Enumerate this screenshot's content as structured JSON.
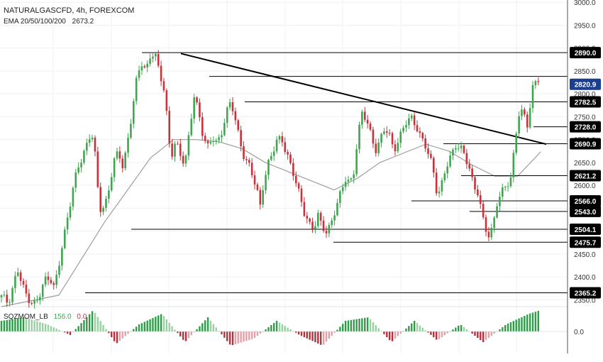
{
  "header": {
    "title": "NATURALGASCFD, 4h, FOREXCOM",
    "ema_label": "EMA 20/50/100/200",
    "ema_value": "2673.2"
  },
  "oscillator": {
    "label": "SQZMOM_LB",
    "value": "156.0",
    "value2": "0.0",
    "axis_label": "0.0"
  },
  "colors": {
    "bull": "#3fa64f",
    "bear": "#c8323a",
    "ema": "#9e9e9e",
    "trendline": "#000000",
    "hline": "#000000",
    "current_price_bg": "#1b3f8f",
    "level_bg": "#000000",
    "osc_pos_strong": "#2e9c48",
    "osc_pos_weak": "#98d1a0",
    "osc_neg_strong": "#b3303d",
    "osc_neg_weak": "#e2a1a8"
  },
  "chart_data": {
    "type": "candlestick",
    "symbol": "NATURALGASCFD",
    "timeframe": "4h",
    "y_ticks": [
      "3000.0",
      "2950.0",
      "2900.0",
      "2850.0",
      "2800.0",
      "2750.0",
      "2700.0",
      "2650.0",
      "2600.0",
      "2550.0",
      "2500.0",
      "2450.0",
      "2400.0",
      "2350.0"
    ],
    "ylim": [
      2335,
      3005
    ],
    "current_price": "2820.9",
    "price_levels": [
      {
        "value": 2890.0,
        "label": "2890.0"
      },
      {
        "value": 2782.5,
        "label": "2782.5"
      },
      {
        "value": 2728.0,
        "label": "2728.0"
      },
      {
        "value": 2690.9,
        "label": "2690.9"
      },
      {
        "value": 2621.2,
        "label": "2621.2"
      },
      {
        "value": 2566.0,
        "label": "2566.0"
      },
      {
        "value": 2543.0,
        "label": "2543.0"
      },
      {
        "value": 2504.1,
        "label": "2504.1"
      },
      {
        "value": 2475.7,
        "label": "2475.7"
      },
      {
        "value": 2365.2,
        "label": "2365.2"
      }
    ],
    "trendline": {
      "from": 2888,
      "to": 2690
    },
    "ema_value": 2673.2,
    "path": [
      [
        0,
        2355
      ],
      [
        6,
        2345
      ],
      [
        10,
        2380
      ],
      [
        14,
        2415
      ],
      [
        18,
        2380
      ],
      [
        22,
        2360
      ],
      [
        26,
        2348
      ],
      [
        30,
        2340
      ],
      [
        34,
        2360
      ],
      [
        38,
        2395
      ],
      [
        42,
        2405
      ],
      [
        46,
        2375
      ],
      [
        50,
        2420
      ],
      [
        54,
        2480
      ],
      [
        58,
        2540
      ],
      [
        62,
        2590
      ],
      [
        66,
        2630
      ],
      [
        70,
        2655
      ],
      [
        74,
        2690
      ],
      [
        78,
        2720
      ],
      [
        80,
        2700
      ],
      [
        82,
        2655
      ],
      [
        84,
        2590
      ],
      [
        86,
        2545
      ],
      [
        90,
        2555
      ],
      [
        94,
        2600
      ],
      [
        98,
        2650
      ],
      [
        102,
        2670
      ],
      [
        106,
        2640
      ],
      [
        110,
        2700
      ],
      [
        114,
        2760
      ],
      [
        118,
        2830
      ],
      [
        122,
        2870
      ],
      [
        126,
        2855
      ],
      [
        130,
        2885
      ],
      [
        134,
        2880
      ],
      [
        138,
        2845
      ],
      [
        140,
        2830
      ],
      [
        142,
        2810
      ],
      [
        144,
        2760
      ],
      [
        146,
        2700
      ],
      [
        148,
        2660
      ],
      [
        152,
        2690
      ],
      [
        156,
        2670
      ],
      [
        160,
        2650
      ],
      [
        164,
        2720
      ],
      [
        168,
        2790
      ],
      [
        172,
        2760
      ],
      [
        176,
        2710
      ],
      [
        180,
        2685
      ],
      [
        184,
        2700
      ],
      [
        188,
        2690
      ],
      [
        192,
        2720
      ],
      [
        196,
        2760
      ],
      [
        200,
        2780
      ],
      [
        204,
        2740
      ],
      [
        208,
        2700
      ],
      [
        212,
        2660
      ],
      [
        216,
        2640
      ],
      [
        220,
        2610
      ],
      [
        224,
        2580
      ],
      [
        226,
        2555
      ],
      [
        228,
        2600
      ],
      [
        232,
        2640
      ],
      [
        236,
        2665
      ],
      [
        240,
        2700
      ],
      [
        244,
        2710
      ],
      [
        248,
        2670
      ],
      [
        252,
        2640
      ],
      [
        256,
        2615
      ],
      [
        260,
        2585
      ],
      [
        264,
        2540
      ],
      [
        268,
        2510
      ],
      [
        272,
        2505
      ],
      [
        276,
        2540
      ],
      [
        280,
        2510
      ],
      [
        284,
        2490
      ],
      [
        288,
        2520
      ],
      [
        292,
        2560
      ],
      [
        296,
        2590
      ],
      [
        300,
        2610
      ],
      [
        304,
        2600
      ],
      [
        308,
        2640
      ],
      [
        310,
        2700
      ],
      [
        314,
        2760
      ],
      [
        318,
        2740
      ],
      [
        322,
        2710
      ],
      [
        326,
        2680
      ],
      [
        330,
        2700
      ],
      [
        334,
        2720
      ],
      [
        338,
        2710
      ],
      [
        342,
        2680
      ],
      [
        346,
        2700
      ],
      [
        350,
        2720
      ],
      [
        354,
        2740
      ],
      [
        358,
        2750
      ],
      [
        362,
        2730
      ],
      [
        366,
        2700
      ],
      [
        370,
        2680
      ],
      [
        374,
        2660
      ],
      [
        378,
        2620
      ],
      [
        380,
        2575
      ],
      [
        384,
        2600
      ],
      [
        388,
        2640
      ],
      [
        392,
        2670
      ],
      [
        396,
        2690
      ],
      [
        400,
        2680
      ],
      [
        404,
        2660
      ],
      [
        408,
        2640
      ],
      [
        412,
        2600
      ],
      [
        416,
        2580
      ],
      [
        418,
        2545
      ],
      [
        420,
        2520
      ],
      [
        424,
        2490
      ],
      [
        428,
        2510
      ],
      [
        432,
        2560
      ],
      [
        436,
        2580
      ],
      [
        440,
        2600
      ],
      [
        444,
        2620
      ],
      [
        446,
        2660
      ],
      [
        448,
        2700
      ],
      [
        450,
        2740
      ],
      [
        452,
        2760
      ],
      [
        456,
        2750
      ],
      [
        458,
        2730
      ],
      [
        460,
        2760
      ],
      [
        462,
        2800
      ],
      [
        464,
        2825
      ],
      [
        468,
        2828
      ],
      [
        470,
        2820
      ]
    ],
    "ema_path": [
      [
        0,
        2335
      ],
      [
        50,
        2360
      ],
      [
        70,
        2440
      ],
      [
        90,
        2520
      ],
      [
        110,
        2590
      ],
      [
        130,
        2660
      ],
      [
        150,
        2700
      ],
      [
        170,
        2700
      ],
      [
        190,
        2695
      ],
      [
        210,
        2680
      ],
      [
        230,
        2650
      ],
      [
        250,
        2630
      ],
      [
        270,
        2610
      ],
      [
        290,
        2590
      ],
      [
        310,
        2615
      ],
      [
        330,
        2650
      ],
      [
        350,
        2670
      ],
      [
        370,
        2690
      ],
      [
        390,
        2675
      ],
      [
        410,
        2645
      ],
      [
        430,
        2620
      ],
      [
        450,
        2620
      ],
      [
        470,
        2673
      ]
    ],
    "oscillator": {
      "label": "SQZMOM_LB",
      "last_value": 156.0,
      "path": [
        [
          0,
          30
        ],
        [
          20,
          40
        ],
        [
          40,
          20
        ],
        [
          60,
          -10
        ],
        [
          80,
          60
        ],
        [
          100,
          -35
        ],
        [
          120,
          20
        ],
        [
          140,
          50
        ],
        [
          160,
          -30
        ],
        [
          180,
          40
        ],
        [
          200,
          -40
        ],
        [
          220,
          -20
        ],
        [
          240,
          30
        ],
        [
          260,
          -10
        ],
        [
          280,
          -40
        ],
        [
          300,
          30
        ],
        [
          320,
          40
        ],
        [
          340,
          -30
        ],
        [
          360,
          30
        ],
        [
          380,
          -25
        ],
        [
          400,
          20
        ],
        [
          420,
          -30
        ],
        [
          440,
          20
        ],
        [
          460,
          50
        ],
        [
          470,
          60
        ]
      ]
    }
  }
}
